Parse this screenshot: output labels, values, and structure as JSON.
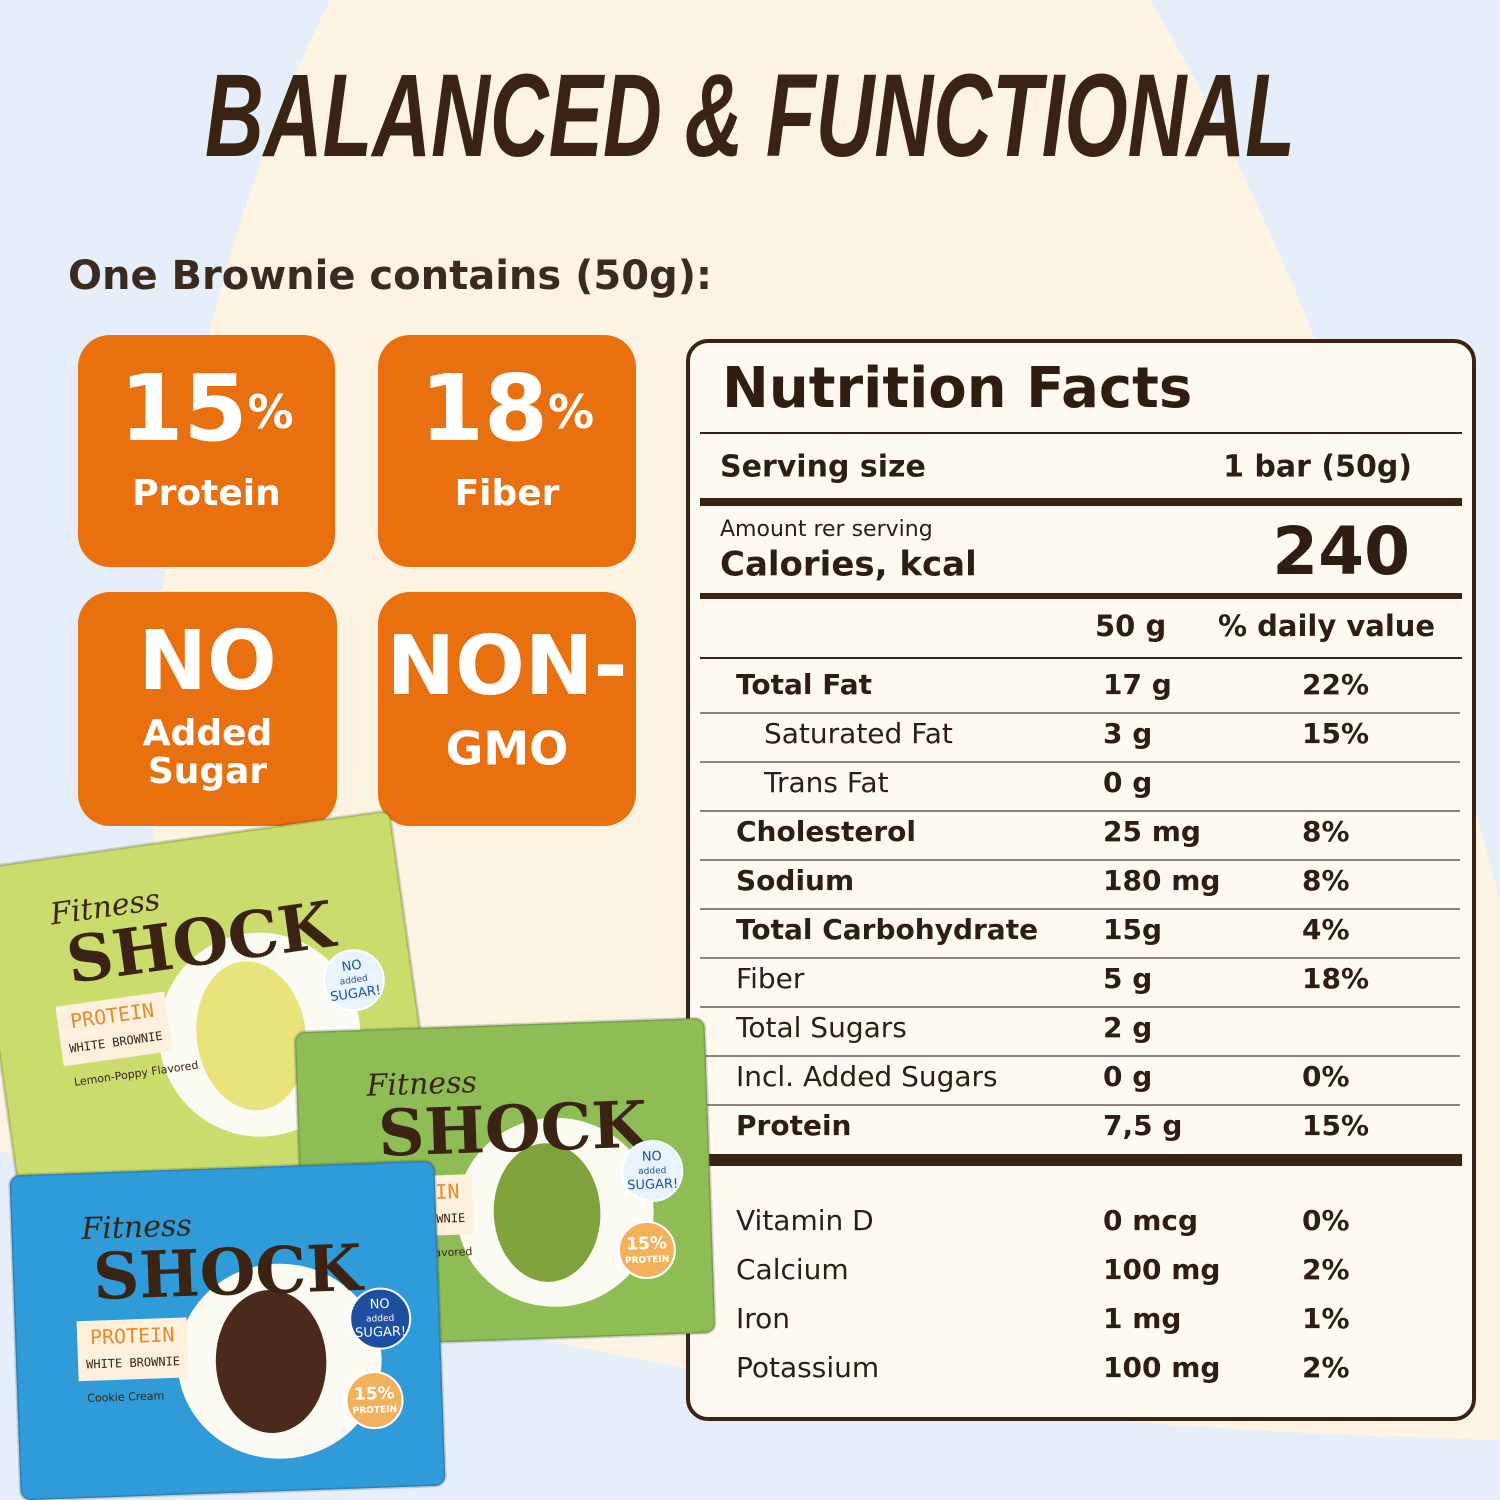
{
  "header": {
    "title": "BALANCED & FUNCTIONAL"
  },
  "intro": "One Brownie contains (50g):",
  "badges": [
    {
      "value": "15",
      "unit": "%",
      "lines": [
        "Protein"
      ]
    },
    {
      "value": "18",
      "unit": "%",
      "lines": [
        "Fiber"
      ]
    },
    {
      "value": "NO",
      "lines": [
        "Added",
        "Sugar"
      ]
    },
    {
      "value": "NON-",
      "lines": [
        "GMO"
      ]
    }
  ],
  "nutrition": {
    "title": "Nutrition Facts",
    "serving_label": "Serving size",
    "serving_value": "1 bar (50g)",
    "amount_label": "Amount rer serving",
    "calories_label": "Calories, kcal",
    "calories_value": "240",
    "amount_header": "50 g",
    "dv_header": "% daily value",
    "rows": [
      {
        "name": "Total Fat",
        "amount": "17 g",
        "dv": "22%",
        "bold": true,
        "indent": false
      },
      {
        "name": "Saturated Fat",
        "amount": "3 g",
        "dv": "15%",
        "bold": false,
        "indent": true
      },
      {
        "name": "Trans Fat",
        "amount": "0 g",
        "bold": false,
        "indent": true
      },
      {
        "name": "Cholesterol",
        "amount": "25 mg",
        "dv": "8%",
        "bold": true,
        "indent": false
      },
      {
        "name": "Sodium",
        "amount": "180 mg",
        "dv": "8%",
        "bold": true,
        "indent": false
      },
      {
        "name": "Total Carbohydrate",
        "amount": "15g",
        "dv": "4%",
        "bold": true,
        "indent": false
      },
      {
        "name": "Fiber",
        "amount": "5 g",
        "dv": "18%",
        "bold": false,
        "indent": false
      },
      {
        "name": "Total Sugars",
        "amount": "2 g",
        "bold": false,
        "indent": false
      },
      {
        "name": "Incl. Added Sugars",
        "amount": "0 g",
        "dv": "0%",
        "bold": false,
        "indent": false
      },
      {
        "name": "Protein",
        "amount": "7,5 g",
        "dv": "15%",
        "bold": true,
        "indent": false
      }
    ],
    "vitamins": [
      {
        "name": "Vitamin D",
        "amount": "0 mcg",
        "dv": "0%"
      },
      {
        "name": "Calcium",
        "amount": "100 mg",
        "dv": "2%"
      },
      {
        "name": "Iron",
        "amount": "1 mg",
        "dv": "1%"
      },
      {
        "name": "Potassium",
        "amount": "100 mg",
        "dv": "2%"
      }
    ]
  },
  "packages": [
    {
      "color": "#c9dc6c",
      "brand": "Fitness",
      "name": "SHOCK",
      "line1": "PROTEIN",
      "line2": "WHITE BROWNIE",
      "flavor": "Lemon-Poppy Flavored",
      "badge": [
        "NO",
        "added",
        "SUGAR!"
      ]
    },
    {
      "color": "#8fbd55",
      "brand": "Fitness",
      "name": "SHOCK",
      "line1": "PROTEIN",
      "line2": "WHITE BROWNIE",
      "flavor": "Pistachio Flavored",
      "badge": [
        "NO",
        "added",
        "SUGAR!"
      ],
      "protein": [
        "15%",
        "PROTEIN"
      ]
    },
    {
      "color": "#2f9bd8",
      "brand": "Fitness",
      "name": "SHOCK",
      "line1": "PROTEIN",
      "line2": "WHITE BROWNIE",
      "flavor": "Cookie Cream",
      "badge": [
        "NO",
        "added",
        "SUGAR!"
      ],
      "protein": [
        "15%",
        "PROTEIN"
      ]
    }
  ]
}
